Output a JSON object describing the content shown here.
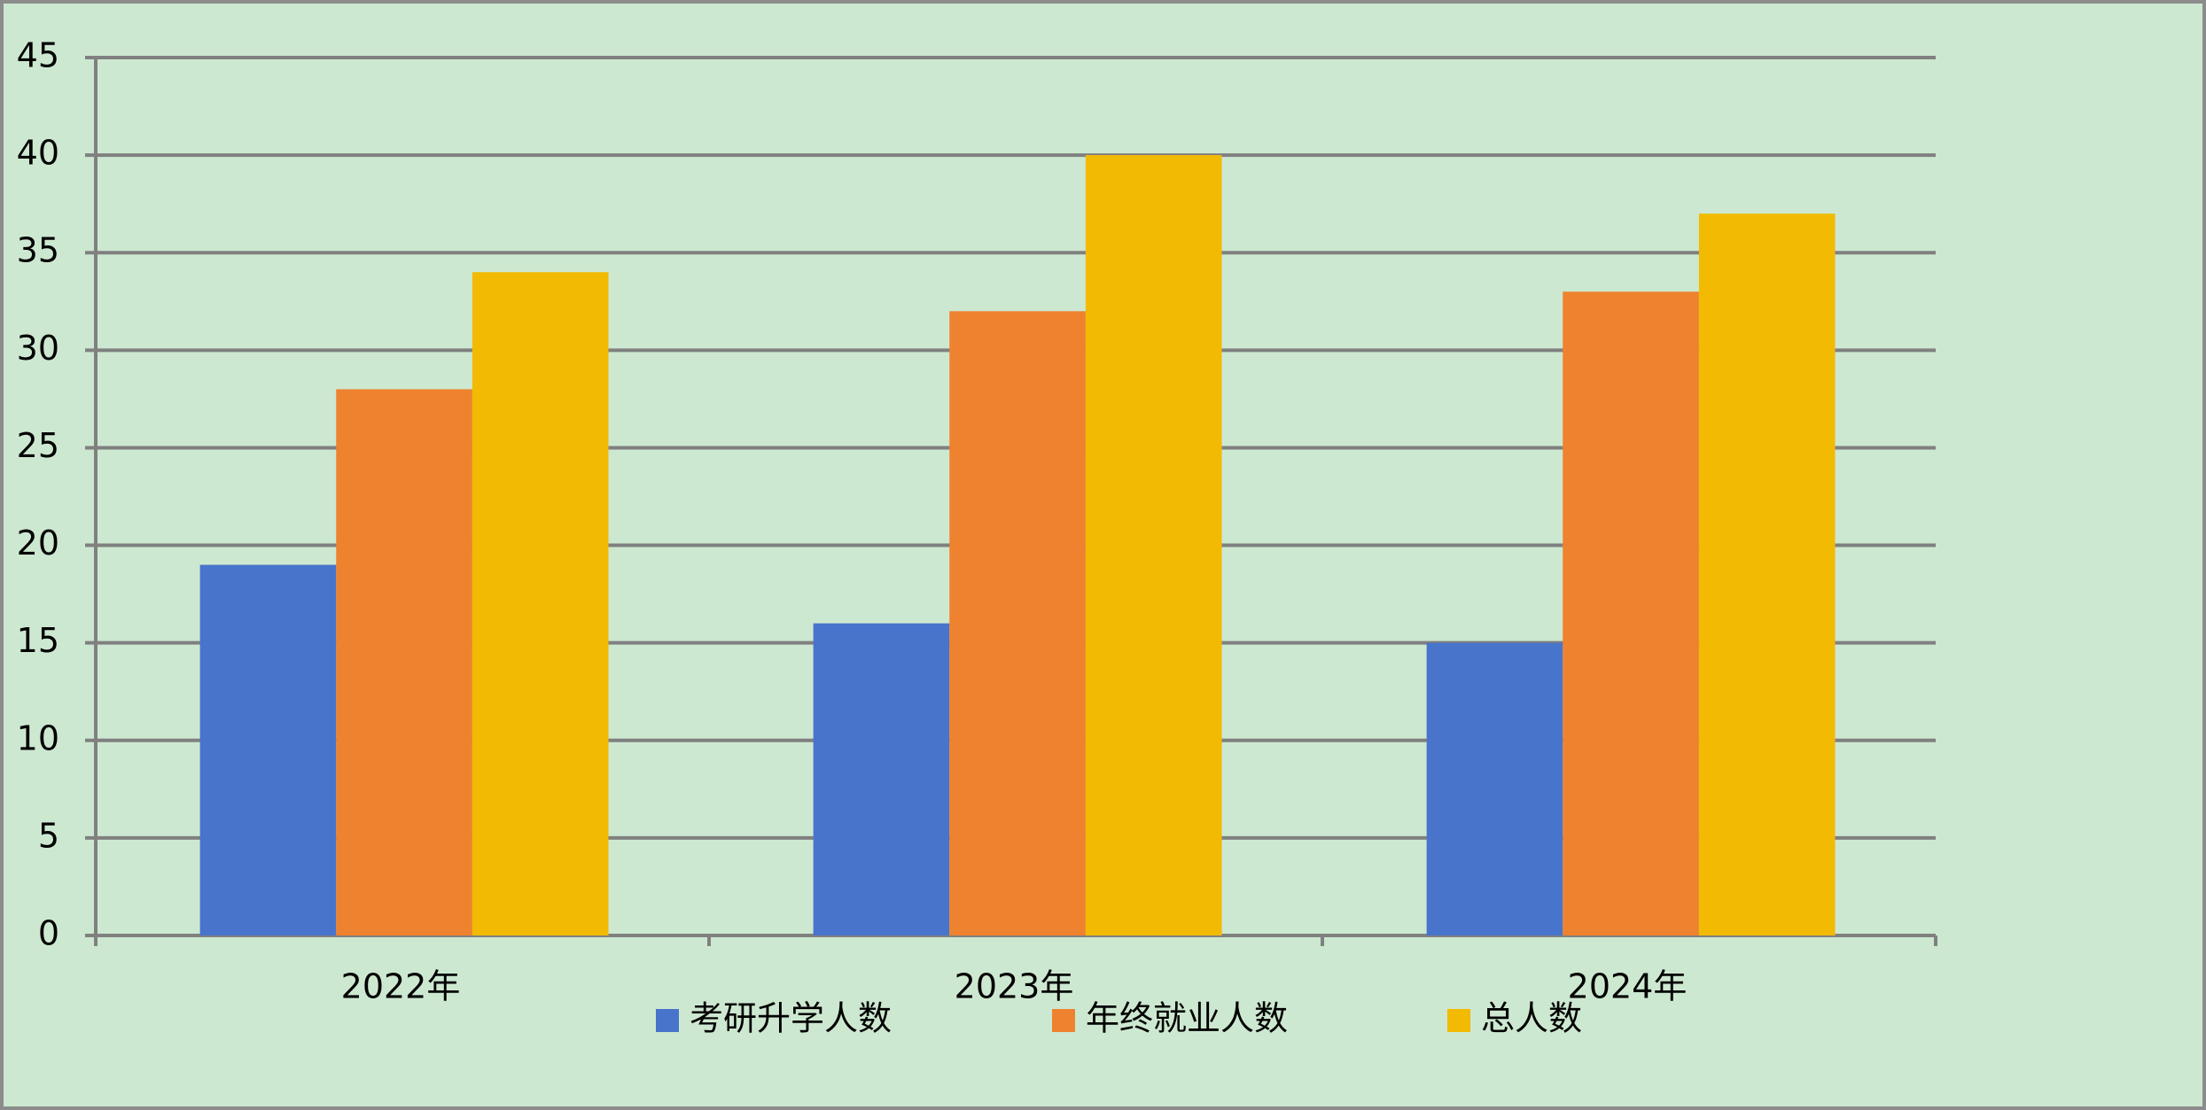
{
  "chart_data": {
    "type": "bar",
    "categories": [
      "2022年",
      "2023年",
      "2024年"
    ],
    "series": [
      {
        "name": "考研升学人数",
        "color": "#4874cb",
        "values": [
          19,
          16,
          15
        ]
      },
      {
        "name": "年终就业人数",
        "color": "#ee822f",
        "values": [
          28,
          32,
          33
        ]
      },
      {
        "name": "总人数",
        "color": "#f2ba02",
        "values": [
          34,
          40,
          37
        ]
      }
    ],
    "ylim": [
      0,
      45
    ],
    "yticks": [
      0,
      5,
      10,
      15,
      20,
      25,
      30,
      35,
      40,
      45
    ],
    "grid": true,
    "legend": "bottom"
  }
}
